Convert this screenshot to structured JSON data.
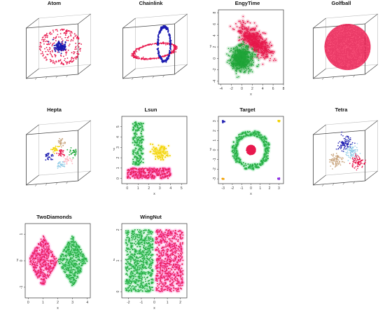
{
  "chart_data": [
    {
      "id": "atom",
      "type": "scatter3d",
      "title": "Atom",
      "box": "3d",
      "series": [
        {
          "name": "",
          "color": "#e8194e",
          "shape": "shell"
        },
        {
          "name": "",
          "color": "#1b1bb0",
          "shape": "core"
        }
      ]
    },
    {
      "id": "chainlink",
      "type": "scatter3d",
      "title": "Chainlink",
      "box": "3d",
      "series": [
        {
          "name": "",
          "color": "#e8194e",
          "shape": "ring-horizontal"
        },
        {
          "name": "",
          "color": "#1b1bb0",
          "shape": "ring-vertical"
        }
      ]
    },
    {
      "id": "engytime",
      "type": "scatter",
      "title": "EngyTime",
      "xlabel": "x",
      "ylabel": "y",
      "xlim": [
        -4.5,
        8
      ],
      "ylim": [
        -4.5,
        8.5
      ],
      "xticks": [
        "-4",
        "-2",
        "0",
        "2",
        "4",
        "6",
        "8"
      ],
      "yticks": [
        "-4",
        "-2",
        "0",
        "2",
        "4",
        "6",
        "8"
      ],
      "series": [
        {
          "name": "",
          "color": "#e8194e",
          "center": [
            2.5,
            3.0
          ]
        },
        {
          "name": "",
          "color": "#21a63a",
          "center": [
            0.0,
            0.0
          ]
        }
      ]
    },
    {
      "id": "golfball",
      "type": "scatter3d",
      "title": "Golfball",
      "box": "3d",
      "series": [
        {
          "name": "",
          "color": "#e8194e",
          "shape": "sphere"
        }
      ]
    },
    {
      "id": "hepta",
      "type": "scatter3d",
      "title": "Hepta",
      "box": "3d",
      "series": [
        {
          "name": "",
          "color": "#e8194e"
        },
        {
          "name": "",
          "color": "#1b1bb0"
        },
        {
          "name": "",
          "color": "#21a63a"
        },
        {
          "name": "",
          "color": "#c8a37b"
        },
        {
          "name": "",
          "color": "#8ecae6"
        },
        {
          "name": "",
          "color": "#f2d200"
        },
        {
          "name": "",
          "color": "#ffb6c1"
        }
      ]
    },
    {
      "id": "lsun",
      "type": "scatter",
      "title": "Lsun",
      "xlabel": "x",
      "ylabel": "y",
      "xlim": [
        -0.5,
        5.5
      ],
      "ylim": [
        -0.5,
        6
      ],
      "xticks": [
        "0",
        "1",
        "2",
        "3",
        "4",
        "5"
      ],
      "yticks": [
        "0",
        "1",
        "2",
        "3",
        "4",
        "5"
      ],
      "series": [
        {
          "name": "",
          "color": "#e8194e",
          "region": [
            0,
            4,
            0,
            1
          ]
        },
        {
          "name": "",
          "color": "#21a63a",
          "region": [
            0.5,
            1.5,
            1.2,
            5.5
          ]
        },
        {
          "name": "",
          "color": "#f2d200",
          "center": [
            3.0,
            2.5
          ]
        }
      ]
    },
    {
      "id": "target",
      "type": "scatter",
      "title": "Target",
      "xlabel": "x",
      "ylabel": "y",
      "xlim": [
        -3.5,
        3.5
      ],
      "ylim": [
        -3.5,
        3.5
      ],
      "xticks": [
        "-3",
        "-2",
        "-1",
        "0",
        "1",
        "2",
        "3"
      ],
      "yticks": [
        "-3",
        "-2",
        "-1",
        "0",
        "1",
        "2",
        "3"
      ],
      "series": [
        {
          "name": "",
          "color": "#21a63a",
          "ring": [
            1.5,
            2.0
          ]
        },
        {
          "name": "",
          "color": "#e8194e",
          "disk": 0.5
        },
        {
          "name": "",
          "color": "#1b1bb0",
          "corner": [
            -3,
            3
          ]
        },
        {
          "name": "",
          "color": "#f2d200",
          "corner": [
            3,
            3
          ]
        },
        {
          "name": "",
          "color": "#f2a000",
          "corner": [
            -3,
            -3
          ]
        },
        {
          "name": "",
          "color": "#8a2be2",
          "corner": [
            3,
            -3
          ]
        }
      ]
    },
    {
      "id": "tetra",
      "type": "scatter3d",
      "title": "Tetra",
      "box": "3d",
      "series": [
        {
          "name": "",
          "color": "#1b1bb0"
        },
        {
          "name": "",
          "color": "#8ecae6"
        },
        {
          "name": "",
          "color": "#c8a37b"
        },
        {
          "name": "",
          "color": "#e8194e"
        }
      ]
    },
    {
      "id": "twodiamonds",
      "type": "scatter",
      "title": "TwoDiamonds",
      "xlabel": "x",
      "ylabel": "y",
      "xlim": [
        -0.2,
        4.2
      ],
      "ylim": [
        -1.4,
        1.4
      ],
      "xticks": [
        "0",
        "1",
        "2",
        "3",
        "4"
      ],
      "yticks": [
        "-1",
        "0",
        "1"
      ],
      "series": [
        {
          "name": "",
          "color": "#e8194e",
          "diamond": [
            1,
            0
          ]
        },
        {
          "name": "",
          "color": "#21a63a",
          "diamond": [
            3,
            0
          ]
        }
      ]
    },
    {
      "id": "wingnut",
      "type": "scatter",
      "title": "WingNut",
      "xlabel": "x",
      "ylabel": "z",
      "xlim": [
        -2.5,
        2.5
      ],
      "ylim": [
        -0.2,
        2.2
      ],
      "xticks": [
        "-2",
        "-1",
        "0",
        "1",
        "2"
      ],
      "yticks": [
        "0",
        "1",
        "2"
      ],
      "series": [
        {
          "name": "",
          "color": "#21a63a",
          "region": [
            -2.2,
            -0.1,
            0,
            2
          ]
        },
        {
          "name": "",
          "color": "#e8194e",
          "region": [
            0.1,
            2.2,
            0,
            2
          ]
        }
      ]
    }
  ]
}
